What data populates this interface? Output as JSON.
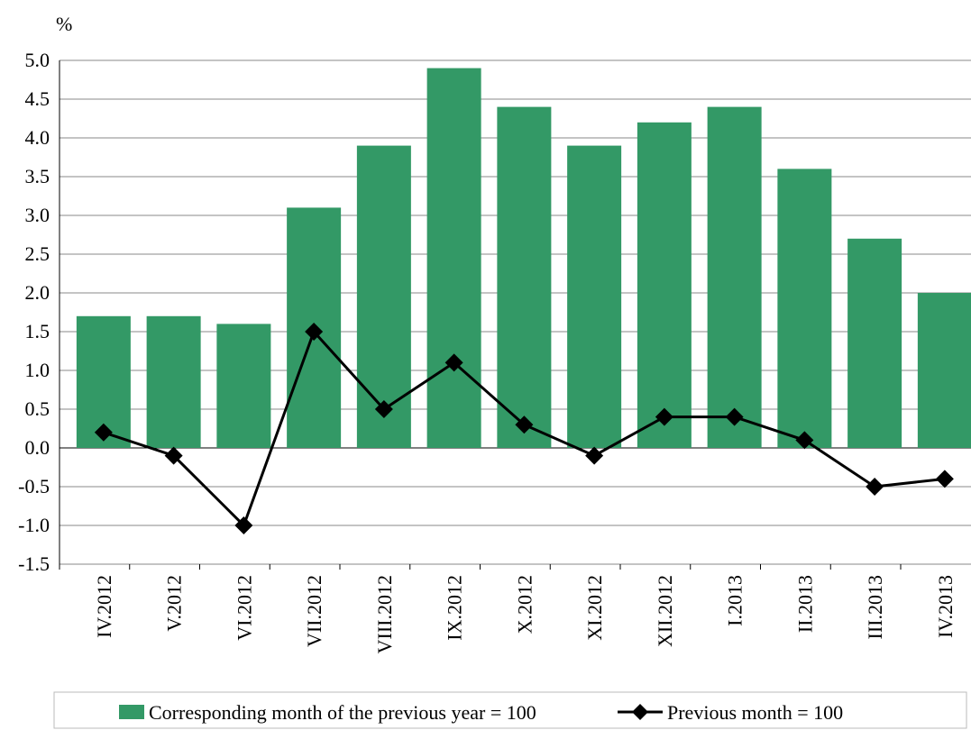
{
  "chart_data": {
    "type": "bar-line",
    "y_label": "%",
    "categories": [
      "IV.2012",
      "V.2012",
      "VI.2012",
      "VII.2012",
      "VIII.2012",
      "IX.2012",
      "X.2012",
      "XI.2012",
      "XII.2012",
      "I.2013",
      "II.2013",
      "III.2013",
      "IV.2013"
    ],
    "series": [
      {
        "name": "Corresponding month of the previous year = 100",
        "type": "bar",
        "color": "#339966",
        "values": [
          1.7,
          1.7,
          1.6,
          3.1,
          3.9,
          4.9,
          4.4,
          3.9,
          4.2,
          4.4,
          3.6,
          2.7,
          2.0
        ]
      },
      {
        "name": "Previous month = 100",
        "type": "line",
        "color": "#000000",
        "values": [
          0.2,
          -0.1,
          -1.0,
          1.5,
          0.5,
          1.1,
          0.3,
          -0.1,
          0.4,
          0.4,
          0.1,
          -0.5,
          -0.4
        ]
      }
    ],
    "ylim": [
      -1.5,
      5.0
    ],
    "yticks": [
      {
        "value": -1.5,
        "label": "-1.5"
      },
      {
        "value": -1,
        "label": "-1.0"
      },
      -0.5,
      {
        "value": 0,
        "label": "0.0"
      },
      0.5,
      {
        "value": 1,
        "label": "1.0"
      },
      1.5,
      {
        "value": 2,
        "label": "2.0"
      },
      2.5,
      {
        "value": 3,
        "label": "3.0"
      },
      3.5,
      {
        "value": 4,
        "label": "4.0"
      },
      4.5,
      {
        "value": 5,
        "label": "5.0"
      }
    ],
    "grid": true,
    "legend": "bottom"
  }
}
